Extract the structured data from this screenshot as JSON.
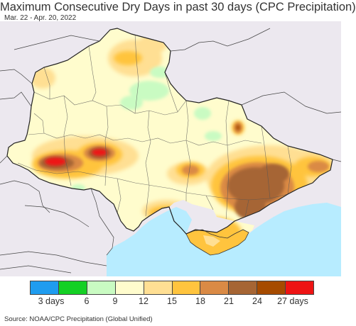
{
  "header": {
    "title": "Maximum Consecutive Dry Days in past 30 days (CPC Precipitation)",
    "subtitle": "Mar. 22 - Apr. 20, 2022"
  },
  "legend": {
    "colors": [
      "#1f9cef",
      "#14d024",
      "#c9fbc2",
      "#fffccd",
      "#ffdf93",
      "#ffc43e",
      "#da8a45",
      "#a66534",
      "#a64b00",
      "#ee1414"
    ],
    "labels": [
      {
        "text": "3 days",
        "index": 1
      },
      {
        "text": "6",
        "index": 2
      },
      {
        "text": "9",
        "index": 3
      },
      {
        "text": "12",
        "index": 4
      },
      {
        "text": "15",
        "index": 5
      },
      {
        "text": "18",
        "index": 6
      },
      {
        "text": "21",
        "index": 7
      },
      {
        "text": "24",
        "index": 8
      },
      {
        "text": "27 days",
        "index": 9
      }
    ]
  },
  "footer": {
    "source": "Source: NOAA/CPC Precipitation (Global Unified)"
  },
  "map_colors": {
    "background_land": "#ece8ef",
    "sea": "#b7ecff",
    "border": "#333333"
  }
}
